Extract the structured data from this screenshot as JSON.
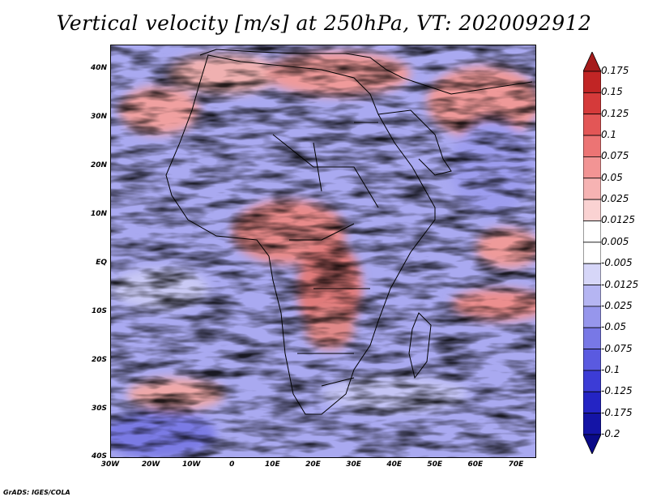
{
  "title": "Vertical velocity [m/s] at 250hPa, VT: 2020092912",
  "credit": "GrADS: IGES/COLA",
  "map": {
    "lat_ticks": [
      "40N",
      "30N",
      "20N",
      "10N",
      "EQ",
      "10S",
      "20S",
      "30S",
      "40S"
    ],
    "lon_ticks": [
      "30W",
      "20W",
      "10W",
      "0",
      "10E",
      "20E",
      "30E",
      "40E",
      "50E",
      "60E",
      "70E"
    ],
    "lat_range": [
      -40,
      45
    ],
    "lon_range": [
      -30,
      75
    ]
  },
  "colorbar": {
    "labels": [
      "0.175",
      "0.15",
      "0.125",
      "0.1",
      "0.075",
      "0.05",
      "0.025",
      "0.0125",
      "0.005",
      "-0.005",
      "-0.0125",
      "-0.025",
      "-0.05",
      "-0.075",
      "-0.1",
      "-0.125",
      "-0.175",
      "-0.2"
    ],
    "colors": [
      "#a51b1b",
      "#c12525",
      "#d53a3a",
      "#e35656",
      "#ec7474",
      "#f29494",
      "#f6b3b3",
      "#fad2d2",
      "#ffffff",
      "#ffffff",
      "#d6d6f8",
      "#b5b5f2",
      "#9696ec",
      "#7878e6",
      "#5a5ae0",
      "#3c3cd6",
      "#2424c4",
      "#1414a6",
      "#0a0a88"
    ]
  }
}
